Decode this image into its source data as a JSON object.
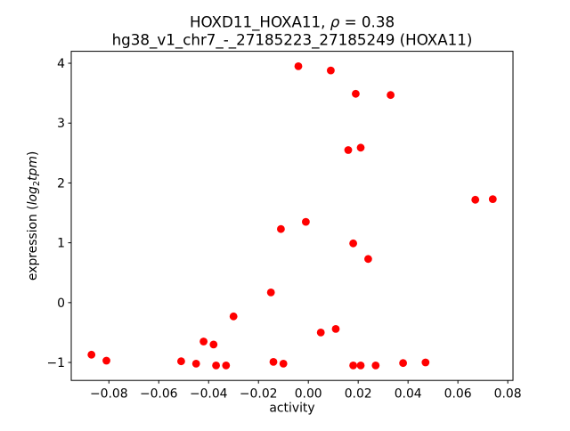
{
  "window": {
    "background_color": "#ffffff"
  },
  "chart_data": {
    "type": "scatter",
    "title": "HOXD11_HOXA11, ρ = 0.38",
    "title_parts": {
      "prefix": "HOXD11_HOXA11, ",
      "rho_symbol": "ρ",
      "suffix": " = 0.38"
    },
    "subtitle": "hg38_v1_chr7_-_27185223_27185249 (HOXA11)",
    "correlation_rho": 0.38,
    "xlabel": "activity",
    "ylabel": "expression (log2tpm)",
    "ylabel_parts": {
      "prefix": "expression (",
      "italic_word": "log",
      "subscript": "2",
      "italic_word2": "tpm",
      "suffix": ")"
    },
    "legend": null,
    "marker": {
      "shape": "circle",
      "color": "#ff0000",
      "radius_px": 4.4
    },
    "axes": {
      "grid": false,
      "spine_color": "#000000",
      "xlim": [
        -0.0951,
        0.0821
      ],
      "ylim": [
        -1.3,
        4.2
      ],
      "xticks": [
        -0.08,
        -0.06,
        -0.04,
        -0.02,
        0.0,
        0.02,
        0.04,
        0.06,
        0.08
      ],
      "xtick_labels": [
        "−0.08",
        "−0.06",
        "−0.04",
        "−0.02",
        "0.00",
        "0.02",
        "0.04",
        "0.06",
        "0.08"
      ],
      "yticks": [
        -1,
        0,
        1,
        2,
        3,
        4
      ],
      "ytick_labels": [
        "−1",
        "0",
        "1",
        "2",
        "3",
        "4"
      ]
    },
    "points": [
      [
        -0.087,
        -0.87
      ],
      [
        -0.081,
        -0.97
      ],
      [
        -0.051,
        -0.98
      ],
      [
        -0.045,
        -1.02
      ],
      [
        -0.042,
        -0.65
      ],
      [
        -0.038,
        -0.7
      ],
      [
        -0.037,
        -1.05
      ],
      [
        -0.033,
        -1.05
      ],
      [
        -0.03,
        -0.23
      ],
      [
        -0.015,
        0.17
      ],
      [
        -0.014,
        -0.99
      ],
      [
        -0.011,
        1.23
      ],
      [
        -0.01,
        -1.02
      ],
      [
        -0.004,
        3.95
      ],
      [
        -0.001,
        1.35
      ],
      [
        0.005,
        -0.5
      ],
      [
        0.009,
        3.88
      ],
      [
        0.011,
        -0.44
      ],
      [
        0.016,
        2.55
      ],
      [
        0.018,
        0.99
      ],
      [
        0.018,
        -1.05
      ],
      [
        0.019,
        3.49
      ],
      [
        0.021,
        2.59
      ],
      [
        0.021,
        -1.05
      ],
      [
        0.024,
        0.73
      ],
      [
        0.027,
        -1.05
      ],
      [
        0.033,
        3.47
      ],
      [
        0.038,
        -1.01
      ],
      [
        0.047,
        -1.0
      ],
      [
        0.067,
        1.72
      ],
      [
        0.074,
        1.73
      ]
    ]
  }
}
